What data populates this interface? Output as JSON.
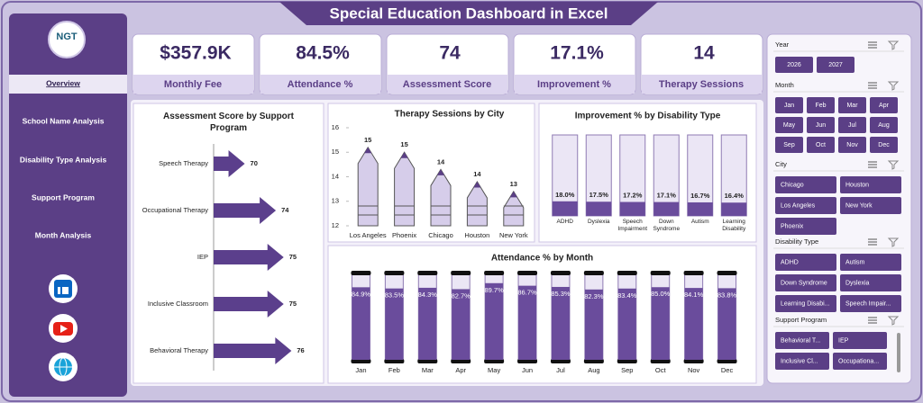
{
  "header": {
    "title": "Special Education Dashboard in Excel",
    "logo": "NGT"
  },
  "sidebar": {
    "nav": [
      "Overview",
      "School Name Analysis",
      "Disability Type Analysis",
      "Support Program",
      "Month Analysis"
    ]
  },
  "kpis": [
    {
      "value": "$357.9K",
      "label": "Monthly Fee"
    },
    {
      "value": "84.5%",
      "label": "Attendance %"
    },
    {
      "value": "74",
      "label": "Assessment Score"
    },
    {
      "value": "17.1%",
      "label": "Improvement %"
    },
    {
      "value": "14",
      "label": "Therapy Sessions"
    }
  ],
  "chart_data": [
    {
      "type": "arrow-bar",
      "title": "Assessment Score by Support Program",
      "categories": [
        "Speech Therapy",
        "Occupational Therapy",
        "IEP",
        "Inclusive Classroom",
        "Behavioral Therapy"
      ],
      "values": [
        70,
        74,
        75,
        75,
        76
      ],
      "xlim": [
        66,
        77
      ],
      "color": "#5b3f8c"
    },
    {
      "type": "pencil",
      "title": "Therapy Sessions by City",
      "categories": [
        "Los Angeles",
        "Phoenix",
        "Chicago",
        "Houston",
        "New York"
      ],
      "values": [
        15.2,
        15,
        14.3,
        13.8,
        13.4
      ],
      "value_labels": [
        "15",
        "15",
        "14",
        "14",
        "13"
      ],
      "ylim": [
        12,
        16
      ],
      "yticks": [
        12,
        13,
        14,
        15,
        16
      ],
      "color": "#d6cdea"
    },
    {
      "type": "fill-column",
      "title": "Improvement % by Disability Type",
      "categories": [
        "ADHD",
        "Dyslexia",
        "Speech Impairment",
        "Down Syndrome",
        "Autism",
        "Learning Disability"
      ],
      "values": [
        18.0,
        17.5,
        17.2,
        17.1,
        16.7,
        16.4
      ],
      "value_labels": [
        "18.0%",
        "17.5%",
        "17.2%",
        "17.1%",
        "16.7%",
        "16.4%"
      ],
      "ylim": [
        0,
        100
      ],
      "color": "#6a4c9c"
    },
    {
      "type": "fill-column",
      "title": "Attendance % by Month",
      "categories": [
        "Jan",
        "Feb",
        "Mar",
        "Apr",
        "May",
        "Jun",
        "Jul",
        "Aug",
        "Sep",
        "Oct",
        "Nov",
        "Dec"
      ],
      "values": [
        84.9,
        83.5,
        84.3,
        82.7,
        89.7,
        86.7,
        85.3,
        82.3,
        83.4,
        85.0,
        84.1,
        83.8
      ],
      "value_labels": [
        "84.9%",
        "83.5%",
        "84.3%",
        "82.7%",
        "89.7%",
        "86.7%",
        "85.3%",
        "82.3%",
        "83.4%",
        "85.0%",
        "84.1%",
        "83.8%"
      ],
      "ylim": [
        0,
        100
      ],
      "color": "#6a4c9c"
    }
  ],
  "slicers": [
    {
      "title": "Year",
      "items": [
        "2026",
        "2027"
      ]
    },
    {
      "title": "Month",
      "items": [
        "Jan",
        "Feb",
        "Mar",
        "Apr",
        "May",
        "Jun",
        "Jul",
        "Aug",
        "Sep",
        "Oct",
        "Nov",
        "Dec"
      ]
    },
    {
      "title": "City",
      "items": [
        "Chicago",
        "Houston",
        "Los Angeles",
        "New York",
        "Phoenix"
      ]
    },
    {
      "title": "Disability Type",
      "items": [
        "ADHD",
        "Autism",
        "Down Syndrome",
        "Dyslexia",
        "Learning Disabi...",
        "Speech Impair..."
      ]
    },
    {
      "title": "Support Program",
      "items": [
        "Behavioral T...",
        "IEP",
        "Inclusive Cl...",
        "Occupationa..."
      ]
    }
  ]
}
